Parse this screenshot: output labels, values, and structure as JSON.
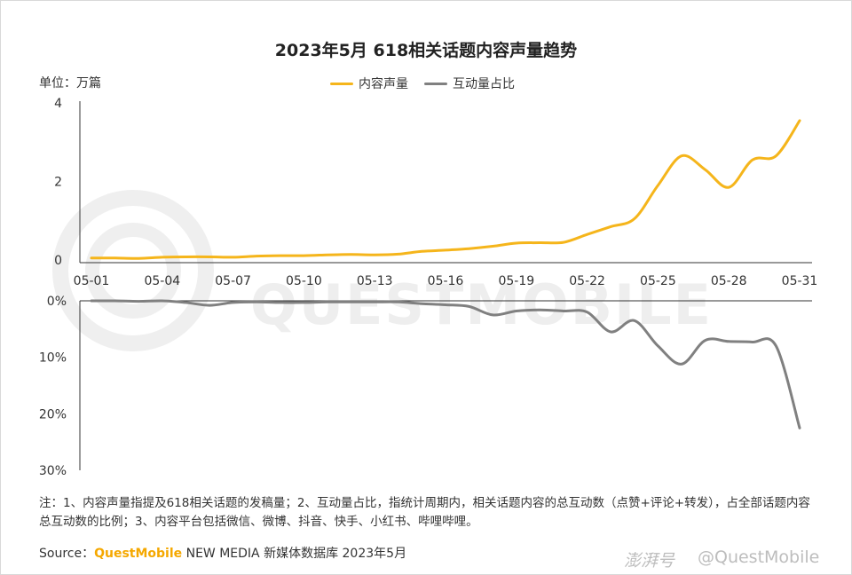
{
  "title": "2023年5月 618相关话题内容声量趋势",
  "unit_label": "单位：万篇",
  "legend": [
    {
      "label": "内容声量",
      "color": "#f5b51b"
    },
    {
      "label": "互动量占比",
      "color": "#808080"
    }
  ],
  "watermark": "QUESTMOBILE",
  "chart_data": [
    {
      "type": "line",
      "series_name": "内容声量",
      "x": [
        "05-01",
        "05-02",
        "05-03",
        "05-04",
        "05-05",
        "05-06",
        "05-07",
        "05-08",
        "05-09",
        "05-10",
        "05-11",
        "05-12",
        "05-13",
        "05-14",
        "05-15",
        "05-16",
        "05-17",
        "05-18",
        "05-19",
        "05-20",
        "05-21",
        "05-22",
        "05-23",
        "05-24",
        "05-25",
        "05-26",
        "05-27",
        "05-28",
        "05-29",
        "05-30",
        "05-31"
      ],
      "x_tick_labels": [
        "05-01",
        "05-04",
        "05-07",
        "05-10",
        "05-13",
        "05-16",
        "05-19",
        "05-22",
        "05-25",
        "05-28",
        "05-31"
      ],
      "y": [
        0.05,
        0.05,
        0.04,
        0.07,
        0.08,
        0.08,
        0.07,
        0.1,
        0.11,
        0.11,
        0.13,
        0.14,
        0.13,
        0.15,
        0.22,
        0.25,
        0.29,
        0.35,
        0.43,
        0.44,
        0.45,
        0.65,
        0.85,
        1.05,
        1.9,
        2.65,
        2.3,
        1.85,
        2.55,
        2.65,
        3.55
      ],
      "y_ticks": [
        "0",
        "2",
        "4"
      ],
      "ylim": [
        0,
        4
      ],
      "color": "#f5b51b"
    },
    {
      "type": "line",
      "series_name": "互动量占比",
      "x": [
        "05-01",
        "05-02",
        "05-03",
        "05-04",
        "05-05",
        "05-06",
        "05-07",
        "05-08",
        "05-09",
        "05-10",
        "05-11",
        "05-12",
        "05-13",
        "05-14",
        "05-15",
        "05-16",
        "05-17",
        "05-18",
        "05-19",
        "05-20",
        "05-21",
        "05-22",
        "05-23",
        "05-24",
        "05-25",
        "05-26",
        "05-27",
        "05-28",
        "05-29",
        "05-30",
        "05-31"
      ],
      "y": [
        0.0,
        0.0,
        0.1,
        0.0,
        0.3,
        0.8,
        0.3,
        0.2,
        0.3,
        0.3,
        0.2,
        0.2,
        0.2,
        0.2,
        0.5,
        0.7,
        1.0,
        2.5,
        1.8,
        1.6,
        1.8,
        2.0,
        5.5,
        3.5,
        8.0,
        11.2,
        7.0,
        7.2,
        7.3,
        8.0,
        22.5
      ],
      "y_ticks": [
        "0%",
        "10%",
        "20%",
        "30%"
      ],
      "ylim": [
        0,
        30
      ],
      "y_inverted": true,
      "color": "#808080"
    }
  ],
  "notes": "注：1、内容声量指提及618相关话题的发稿量；2、互动量占比，指统计周期内，相关话题内容的总互动数（点赞+评论+转发），占全部话题内容总互动数的比例；3、内容平台包括微信、微博、抖音、快手、小红书、哔哩哔哩。",
  "source": {
    "prefix": "Source：",
    "brand": "QuestMobile",
    "rest": " NEW MEDIA 新媒体数据库 2023年5月"
  },
  "footer": {
    "mark": "澎湃号",
    "brand": "@QuestMobile"
  }
}
